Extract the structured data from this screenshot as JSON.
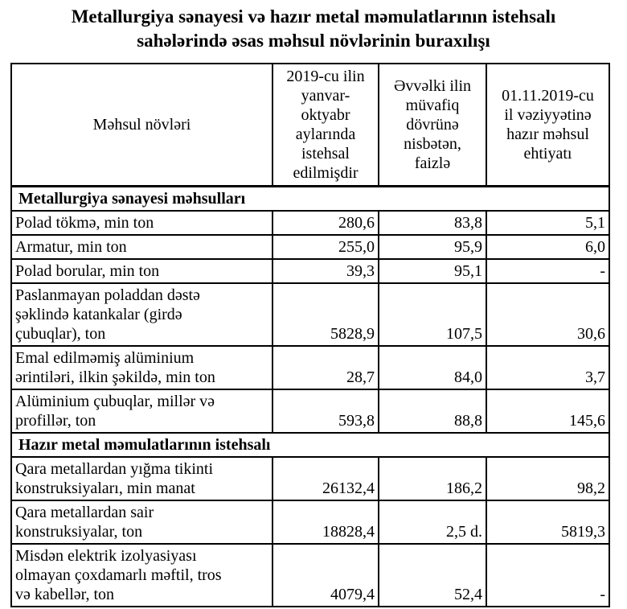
{
  "title": "Metallurgiya sənayesi və hazır metal məmulatlarının istehsalı\nsahələrində əsas məhsul növlərinin buraxılışı",
  "table": {
    "columns": [
      {
        "label": "Məhsul növləri"
      },
      {
        "label": "2019-cu ilin\nyanvar-\noktyabr\naylarında\nistehsal\nedilmişdir"
      },
      {
        "label": "Əvvəlki ilin\nmüvafiq\ndövrünə\nnisbətən,\nfaizlə"
      },
      {
        "label": "01.11.2019-cu\nil vəziyyətinə\nhazır məhsul\nehtiyatı"
      }
    ],
    "sections": [
      {
        "header": "Metallurgiya sənayesi məhsulları",
        "rows": [
          {
            "name": "Polad tökmə, min ton",
            "produced": "280,6",
            "vs_prev_year_pct": "83,8",
            "stock": "5,1"
          },
          {
            "name": "Armatur, min ton",
            "produced": "255,0",
            "vs_prev_year_pct": "95,9",
            "stock": "6,0"
          },
          {
            "name": "Polad borular,  min ton",
            "produced": "39,3",
            "vs_prev_year_pct": "95,1",
            "stock": "-"
          },
          {
            "name": "Paslanmayan poladdan dəstə\nşəklində katankalar (girdə\nçubuqlar), ton",
            "produced": "5828,9",
            "vs_prev_year_pct": "107,5",
            "stock": "30,6"
          },
          {
            "name": "Emal edilməmiş alüminium\nərintiləri, ilkin şəkildə, min ton",
            "produced": "28,7",
            "vs_prev_year_pct": "84,0",
            "stock": "3,7"
          },
          {
            "name": "Alüminium çubuqlar, millər və\nprofillər, ton",
            "produced": "593,8",
            "vs_prev_year_pct": "88,8",
            "stock": "145,6"
          }
        ]
      },
      {
        "header": "Hazır metal məmulatlarının istehsalı",
        "rows": [
          {
            "name": "Qara metallardan yığma tikinti\nkonstruksiyaları, min manat",
            "produced": "26132,4",
            "vs_prev_year_pct": "186,2",
            "stock": "98,2"
          },
          {
            "name": "Qara metallardan sair\nkonstruksiyalar, ton",
            "produced": "18828,4",
            "vs_prev_year_pct": "2,5 d.",
            "stock": "5819,3"
          },
          {
            "name": "Misdən elektrik izolyasiyası\nolmayan çoxdamarlı məftil, tros\nvə kabellər, ton",
            "produced": "4079,4",
            "vs_prev_year_pct": "52,4",
            "stock": "-"
          }
        ]
      }
    ]
  }
}
